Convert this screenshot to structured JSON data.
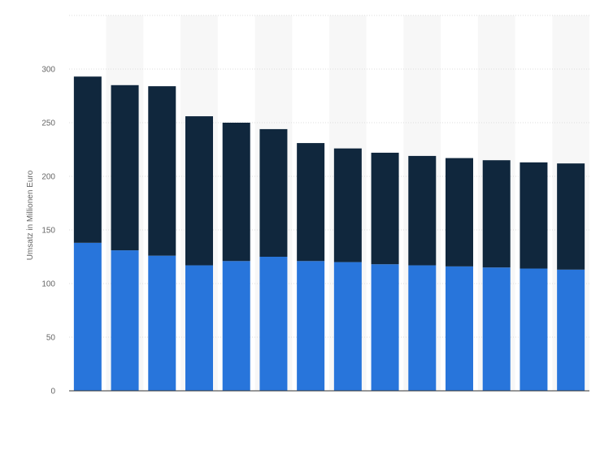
{
  "chart_data": {
    "type": "bar",
    "stacked": true,
    "title": "",
    "xlabel": "",
    "ylabel": "Umsatz in Millionen Euro",
    "categories": [
      "",
      "",
      "",
      "",
      "",
      "",
      "",
      "",
      "",
      "",
      "",
      "",
      "",
      ""
    ],
    "series": [
      {
        "color": "#2875db",
        "values": [
          138,
          131,
          126,
          117,
          121,
          125,
          121,
          120,
          118,
          117,
          116,
          115,
          114,
          113
        ]
      },
      {
        "color": "#10273d",
        "values": [
          155,
          154,
          158,
          139,
          129,
          119,
          110,
          106,
          104,
          102,
          101,
          100,
          99,
          99
        ]
      }
    ],
    "ylim": [
      0,
      350
    ],
    "yticks": [
      0,
      50,
      100,
      150,
      200,
      250,
      300
    ],
    "grid": true,
    "legend": "none"
  }
}
